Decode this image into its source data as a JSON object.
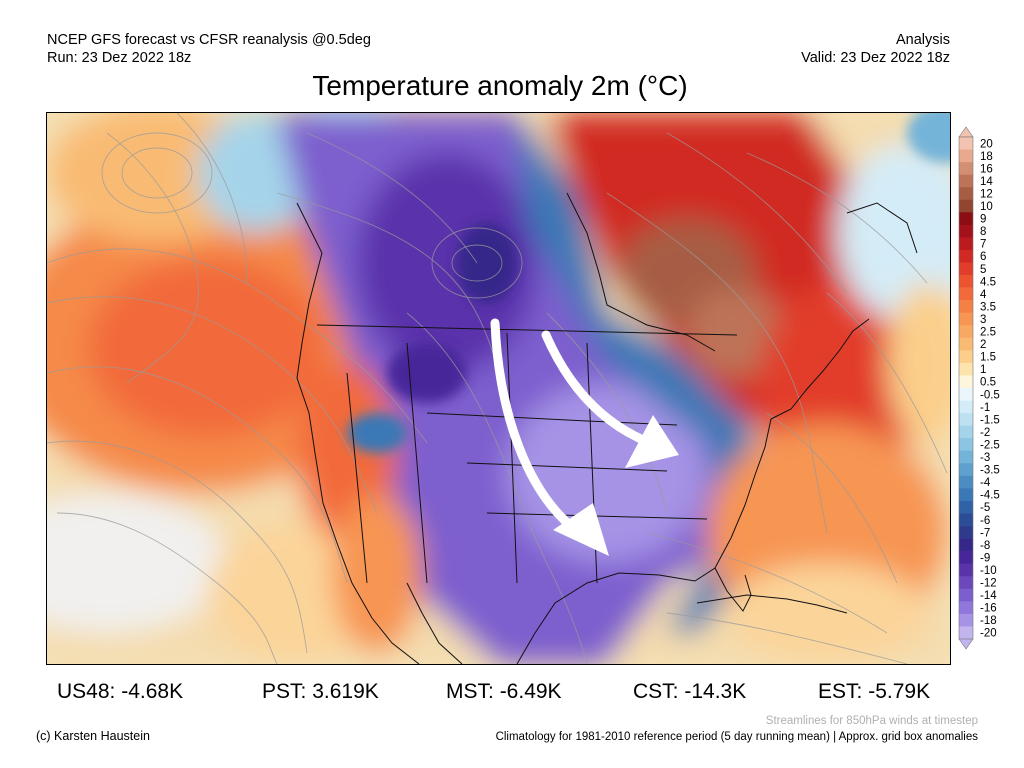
{
  "header": {
    "left_line1": "NCEP GFS forecast vs CFSR reanalysis @0.5deg",
    "left_line2": "Run: 23 Dez 2022 18z",
    "right_line1": "Analysis",
    "right_line2": "Valid: 23 Dez 2022 18z"
  },
  "title": "Temperature anomaly 2m (°C)",
  "colorbar": {
    "levels": [
      {
        "label": "20",
        "color": "#f2c3b0"
      },
      {
        "label": "18",
        "color": "#e8a98e"
      },
      {
        "label": "16",
        "color": "#d38f73"
      },
      {
        "label": "14",
        "color": "#bd7358"
      },
      {
        "label": "12",
        "color": "#a75d44"
      },
      {
        "label": "10",
        "color": "#92462f"
      },
      {
        "label": "9",
        "color": "#8b0e14"
      },
      {
        "label": "8",
        "color": "#a3121a"
      },
      {
        "label": "7",
        "color": "#bb1a1f"
      },
      {
        "label": "6",
        "color": "#d12a24"
      },
      {
        "label": "5",
        "color": "#e23c2a"
      },
      {
        "label": "4.5",
        "color": "#ec5430"
      },
      {
        "label": "4",
        "color": "#f26a3a"
      },
      {
        "label": "3.5",
        "color": "#f58045"
      },
      {
        "label": "3",
        "color": "#f79553"
      },
      {
        "label": "2.5",
        "color": "#f8a862"
      },
      {
        "label": "2",
        "color": "#f9bb73"
      },
      {
        "label": "1.5",
        "color": "#fbcf8b"
      },
      {
        "label": "1",
        "color": "#fde4ad"
      },
      {
        "label": "0.5",
        "color": "#fdf5dc"
      },
      {
        "label": "-0.5",
        "color": "#eaf6fc"
      },
      {
        "label": "-1",
        "color": "#d4ecf7"
      },
      {
        "label": "-1.5",
        "color": "#bde1f1"
      },
      {
        "label": "-2",
        "color": "#a5d4ea"
      },
      {
        "label": "-2.5",
        "color": "#8cc5e2"
      },
      {
        "label": "-3",
        "color": "#74b4d9"
      },
      {
        "label": "-3.5",
        "color": "#5ea1ce"
      },
      {
        "label": "-4",
        "color": "#4b8dc3"
      },
      {
        "label": "-4.5",
        "color": "#3b78b6"
      },
      {
        "label": "-5",
        "color": "#2f62a6"
      },
      {
        "label": "-6",
        "color": "#2b4c97"
      },
      {
        "label": "-7",
        "color": "#2f3a8c"
      },
      {
        "label": "-8",
        "color": "#35288a"
      },
      {
        "label": "-9",
        "color": "#46269a"
      },
      {
        "label": "-10",
        "color": "#5a33ab"
      },
      {
        "label": "-12",
        "color": "#6c48bd"
      },
      {
        "label": "-14",
        "color": "#7d5ece"
      },
      {
        "label": "-16",
        "color": "#9077dc"
      },
      {
        "label": "-18",
        "color": "#a693e6"
      },
      {
        "label": "-20",
        "color": "#c1b4ef"
      }
    ]
  },
  "stats": [
    {
      "label": "US48:",
      "value": "-4.68K"
    },
    {
      "label": "PST:",
      "value": "3.619K"
    },
    {
      "label": "MST:",
      "value": "-6.49K"
    },
    {
      "label": "CST:",
      "value": "-14.3K"
    },
    {
      "label": "EST:",
      "value": "-5.79K"
    }
  ],
  "footer": {
    "credit": "(c) Karsten Haustein",
    "streamlines_note": "Streamlines for 850hPa winds at timestep",
    "climatology_note": "Climatology for 1981-2010 reference period (5 day running mean) | Approx. grid box anomalies"
  }
}
